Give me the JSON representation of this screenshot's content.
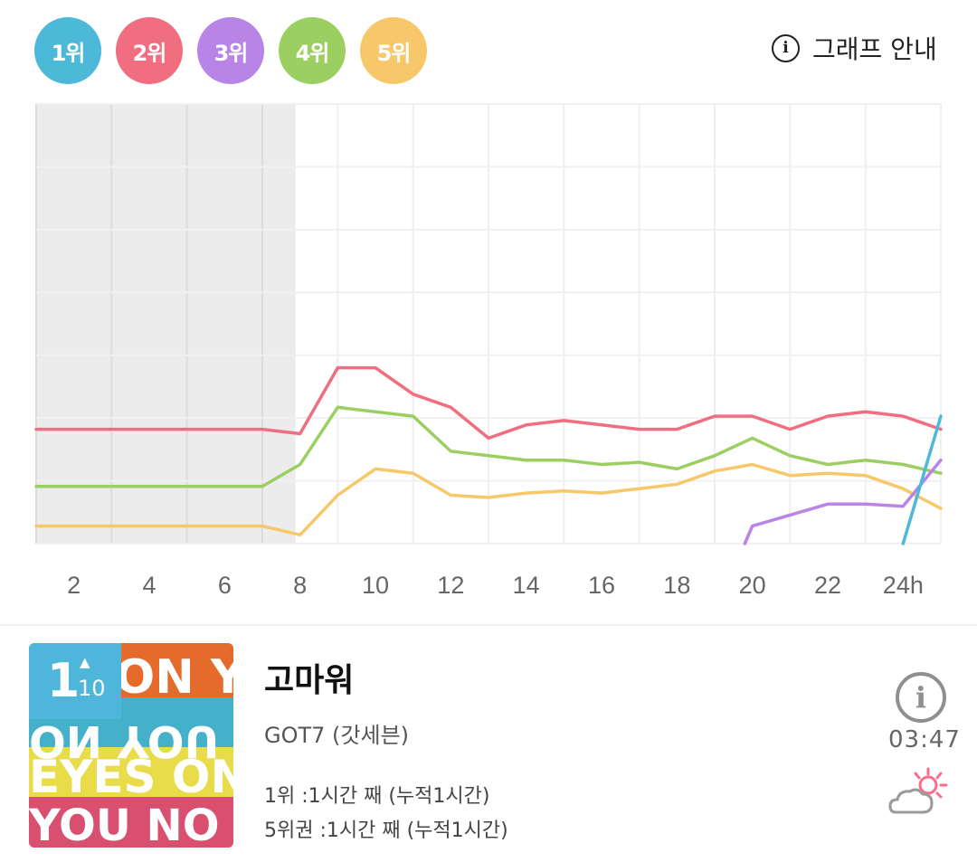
{
  "legend": {
    "items": [
      {
        "label": "1위",
        "color": "#4db9d8"
      },
      {
        "label": "2위",
        "color": "#f16d80"
      },
      {
        "label": "3위",
        "color": "#b884e8"
      },
      {
        "label": "4위",
        "color": "#9ccf62"
      },
      {
        "label": "5위",
        "color": "#f7c86a"
      }
    ]
  },
  "guide": {
    "icon": "info-icon",
    "label": "그래프 안내"
  },
  "chart_data": {
    "type": "line",
    "x_ticks": [
      "2",
      "4",
      "6",
      "8",
      "10",
      "12",
      "14",
      "16",
      "18",
      "20",
      "22",
      "24h"
    ],
    "shaded_x_range": [
      0,
      7
    ],
    "grid": true,
    "y_axis_labels": "none",
    "series": [
      {
        "color": "#f16d80",
        "x": [
          0,
          6,
          7,
          8,
          9,
          10,
          11,
          12,
          13,
          14,
          15,
          16,
          17,
          18,
          19,
          20,
          21,
          22,
          23,
          24
        ],
        "y": [
          0.26,
          0.26,
          0.25,
          0.4,
          0.4,
          0.34,
          0.31,
          0.24,
          0.27,
          0.28,
          0.27,
          0.26,
          0.26,
          0.29,
          0.29,
          0.26,
          0.29,
          0.3,
          0.29,
          0.26
        ]
      },
      {
        "color": "#9ccf62",
        "x": [
          0,
          6,
          7,
          8,
          9,
          10,
          11,
          12,
          13,
          14,
          15,
          16,
          17,
          18,
          19,
          20,
          21,
          22,
          23,
          24
        ],
        "y": [
          0.13,
          0.13,
          0.18,
          0.31,
          0.3,
          0.29,
          0.21,
          0.2,
          0.19,
          0.19,
          0.18,
          0.185,
          0.17,
          0.2,
          0.24,
          0.2,
          0.18,
          0.19,
          0.18,
          0.16
        ]
      },
      {
        "color": "#f7c86a",
        "x": [
          0,
          6,
          7,
          8,
          9,
          10,
          11,
          12,
          13,
          14,
          15,
          16,
          17,
          18,
          19,
          20,
          21,
          22,
          23,
          24
        ],
        "y": [
          0.04,
          0.04,
          0.02,
          0.11,
          0.17,
          0.16,
          0.11,
          0.105,
          0.115,
          0.12,
          0.115,
          0.125,
          0.135,
          0.165,
          0.18,
          0.155,
          0.16,
          0.155,
          0.125,
          0.08
        ]
      },
      {
        "color": "#b884e8",
        "x": [
          18.8,
          19,
          21,
          22,
          23,
          24
        ],
        "y": [
          0.0,
          0.04,
          0.09,
          0.09,
          0.085,
          0.19
        ]
      },
      {
        "color": "#4db9d8",
        "x": [
          23,
          24
        ],
        "y": [
          0.0,
          0.29
        ]
      }
    ]
  },
  "song": {
    "rank": "1",
    "rank_change": "10",
    "rank_change_icon": "arrow-up-icon",
    "title": "고마워",
    "artist": "GOT7 (갓세븐)",
    "stat_first": "1위 :1시간 째 (누적1시간)",
    "stat_top5": "5위권 :1시간 째 (누적1시간)",
    "duration": "03:47",
    "info_icon": "info-icon",
    "weather_icon": "partly-cloudy-sun-icon",
    "album_art_text": "EYES ON YOU"
  }
}
